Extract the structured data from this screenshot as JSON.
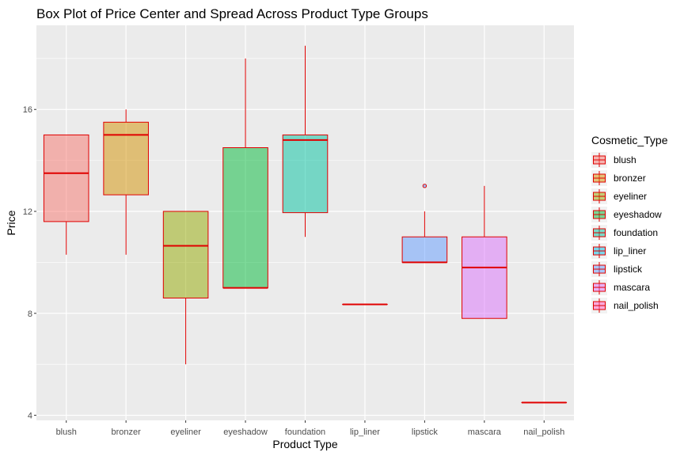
{
  "chart_data": {
    "type": "box",
    "title": "Box Plot of Price Center and Spread Across Product Type Groups",
    "xlabel": "Product Type",
    "ylabel": "Price",
    "ylim": [
      3.8,
      19.3
    ],
    "yticks": [
      4,
      8,
      12,
      16
    ],
    "grid": true,
    "legend_title": "Cosmetic_Type",
    "legend_position": "right",
    "outline_color": "#e00000",
    "categories": [
      "blush",
      "bronzer",
      "eyeliner",
      "eyeshadow",
      "foundation",
      "lip_liner",
      "lipstick",
      "mascara",
      "nail_polish"
    ],
    "series": [
      {
        "name": "blush",
        "color": "#f8766d",
        "whisker_low": 10.3,
        "q1": 11.6,
        "median": 13.5,
        "q3": 15.0,
        "whisker_high": 15.0,
        "outliers": []
      },
      {
        "name": "bronzer",
        "color": "#d39200",
        "whisker_low": 10.3,
        "q1": 12.65,
        "median": 15.0,
        "q3": 15.5,
        "whisker_high": 16.0,
        "outliers": []
      },
      {
        "name": "eyeliner",
        "color": "#93aa00",
        "whisker_low": 6.0,
        "q1": 8.6,
        "median": 10.65,
        "q3": 12.0,
        "whisker_high": 12.0,
        "outliers": []
      },
      {
        "name": "eyeshadow",
        "color": "#00ba38",
        "whisker_low": 9.0,
        "q1": 9.0,
        "median": 9.0,
        "q3": 14.5,
        "whisker_high": 18.0,
        "outliers": []
      },
      {
        "name": "foundation",
        "color": "#00c19f",
        "whisker_low": 11.0,
        "q1": 11.95,
        "median": 14.8,
        "q3": 15.0,
        "whisker_high": 18.5,
        "outliers": []
      },
      {
        "name": "lip_liner",
        "color": "#00b9e3",
        "whisker_low": 8.35,
        "q1": 8.35,
        "median": 8.35,
        "q3": 8.35,
        "whisker_high": 8.35,
        "outliers": []
      },
      {
        "name": "lipstick",
        "color": "#619cff",
        "whisker_low": 10.0,
        "q1": 10.0,
        "median": 10.0,
        "q3": 11.0,
        "whisker_high": 12.0,
        "outliers": [
          13.0
        ]
      },
      {
        "name": "mascara",
        "color": "#db72fb",
        "whisker_low": 7.8,
        "q1": 7.8,
        "median": 9.8,
        "q3": 11.0,
        "whisker_high": 13.0,
        "outliers": []
      },
      {
        "name": "nail_polish",
        "color": "#ff61c3",
        "whisker_low": 4.5,
        "q1": 4.5,
        "median": 4.5,
        "q3": 4.5,
        "whisker_high": 4.5,
        "outliers": []
      }
    ]
  }
}
